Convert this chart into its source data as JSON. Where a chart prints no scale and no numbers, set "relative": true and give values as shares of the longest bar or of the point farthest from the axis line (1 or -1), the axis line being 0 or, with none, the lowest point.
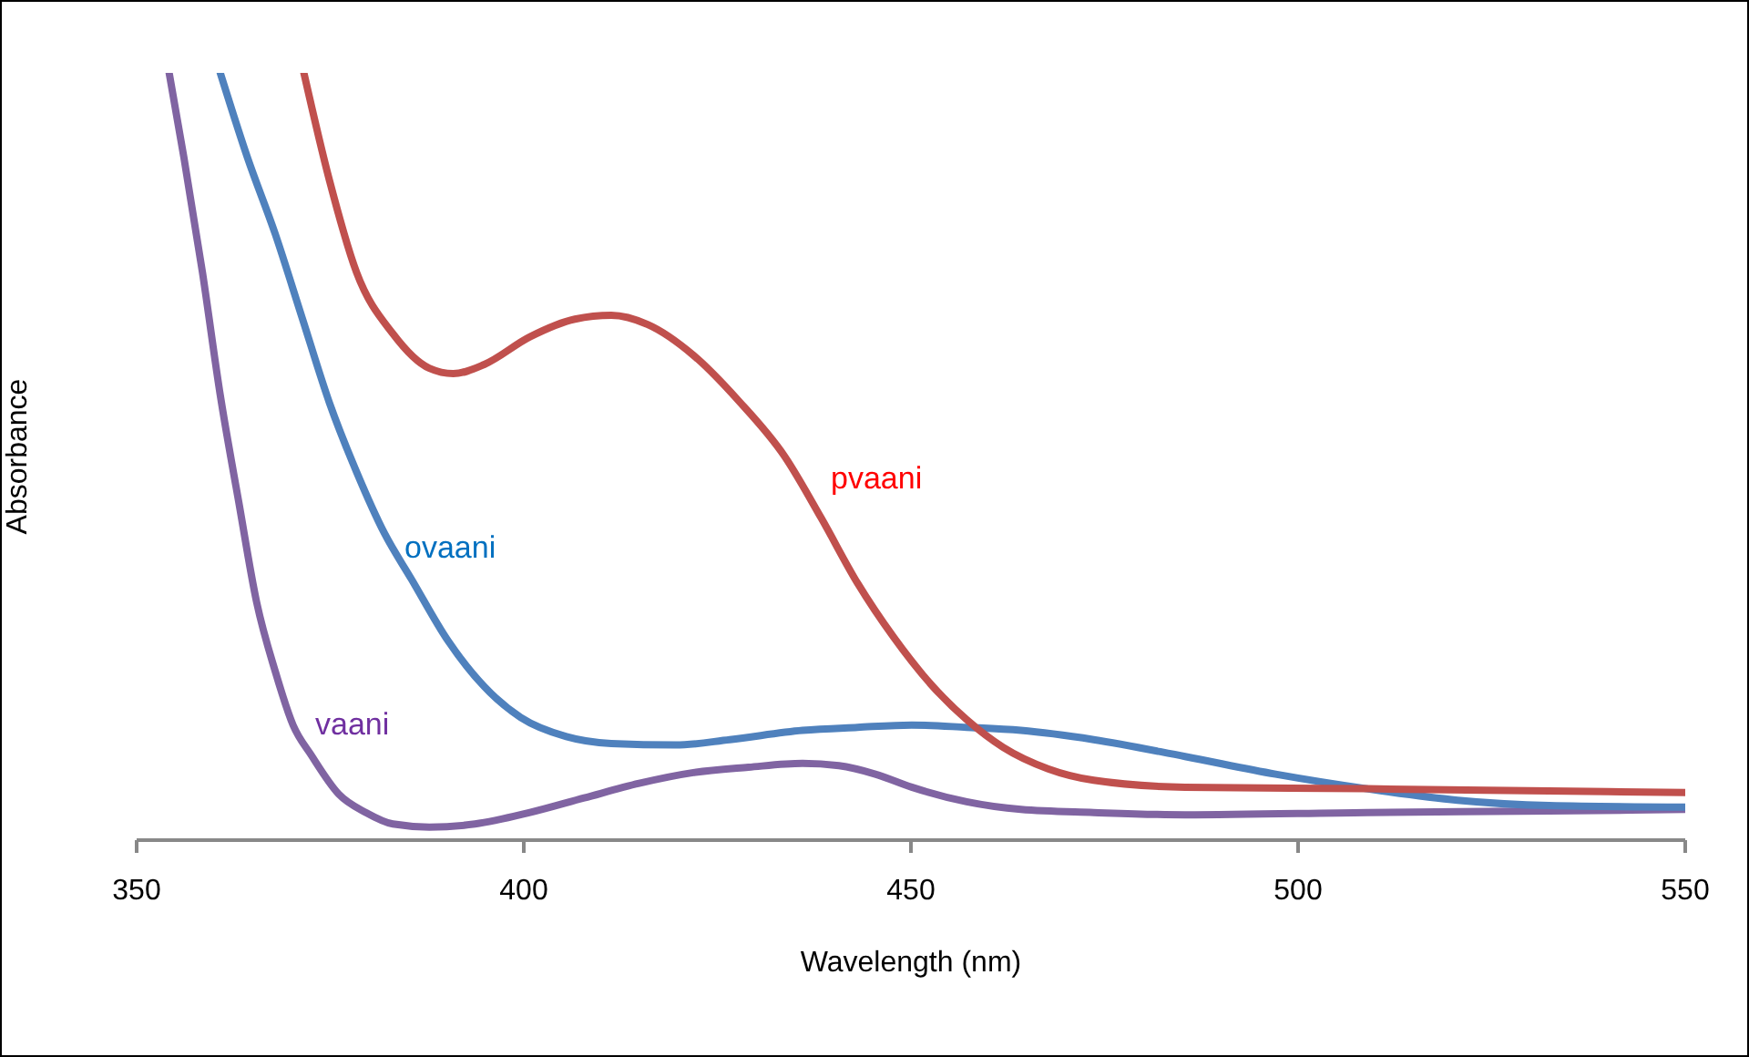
{
  "chart_data": {
    "type": "line",
    "relative": true,
    "xlabel": "Wavelength (nm)",
    "ylabel": "Absorbance",
    "xlim": [
      350,
      550
    ],
    "xticks": [
      350,
      400,
      450,
      500,
      550
    ],
    "series": [
      {
        "name": "vaani",
        "color": "#8064a2",
        "x": [
          354.2,
          356.1,
          358.5,
          360.8,
          363.2,
          365.5,
          367.9,
          370.2,
          372.6,
          376.1,
          379.6,
          383.1,
          387.8,
          393.7,
          400.8,
          407.8,
          414.9,
          421.9,
          429,
          436,
          440.7,
          445.4,
          450.1,
          457.2,
          464.2,
          473.6,
          485.4,
          508.9,
          532.4,
          550
        ],
        "values": [
          1.0,
          0.89,
          0.74,
          0.58,
          0.44,
          0.31,
          0.22,
          0.15,
          0.11,
          0.06,
          0.036,
          0.021,
          0.017,
          0.021,
          0.036,
          0.055,
          0.074,
          0.088,
          0.095,
          0.1,
          0.097,
          0.086,
          0.069,
          0.05,
          0.04,
          0.036,
          0.033,
          0.036,
          0.038,
          0.04
        ]
      },
      {
        "name": "ovaani",
        "color": "#4f81bd",
        "x": [
          360.8,
          364.3,
          367.9,
          371.4,
          374.9,
          378.4,
          382,
          385.5,
          390.2,
          394.9,
          399.6,
          405.5,
          411.3,
          419.6,
          426.6,
          436,
          443.1,
          450.1,
          457.2,
          464.2,
          473.6,
          485.4,
          497.1,
          508.9,
          520.6,
          532.4,
          550
        ],
        "values": [
          1.0,
          0.89,
          0.79,
          0.68,
          0.57,
          0.48,
          0.4,
          0.34,
          0.26,
          0.2,
          0.16,
          0.135,
          0.126,
          0.124,
          0.131,
          0.143,
          0.147,
          0.15,
          0.147,
          0.143,
          0.131,
          0.109,
          0.086,
          0.067,
          0.052,
          0.045,
          0.043
        ]
      },
      {
        "name": "pvaani",
        "color": "#c0504d",
        "x": [
          371.6,
          374.9,
          378.4,
          383.1,
          387.8,
          390.9,
          394.9,
          400.8,
          406.6,
          411.3,
          416,
          421.9,
          427.8,
          433.7,
          438.4,
          443.1,
          447.8,
          452.5,
          457.2,
          461.9,
          467.7,
          473.6,
          485.4,
          508.9,
          532.4,
          550
        ],
        "values": [
          1.0,
          0.86,
          0.74,
          0.66,
          0.615,
          0.608,
          0.62,
          0.656,
          0.679,
          0.684,
          0.672,
          0.632,
          0.572,
          0.5,
          0.42,
          0.335,
          0.264,
          0.204,
          0.157,
          0.121,
          0.093,
          0.078,
          0.069,
          0.067,
          0.064,
          0.062
        ]
      }
    ]
  }
}
